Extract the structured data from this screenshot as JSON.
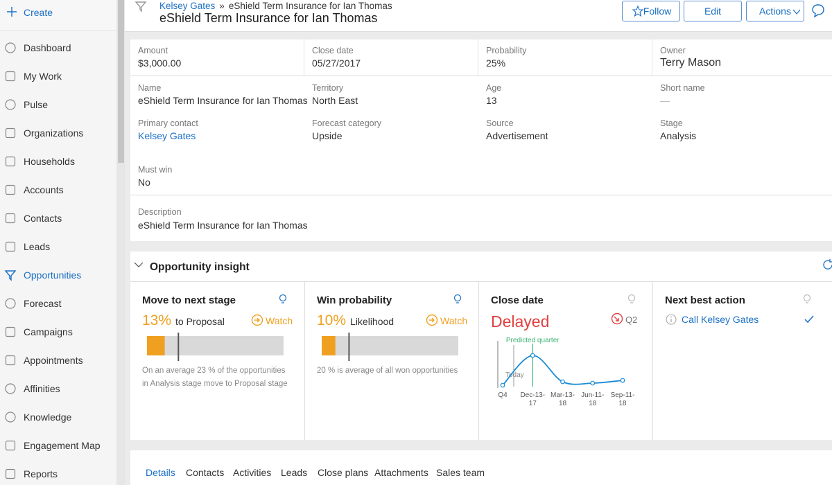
{
  "sidebar": {
    "create": "Create",
    "active": 8,
    "items": [
      "Dashboard",
      "My Work",
      "Pulse",
      "Organizations",
      "Households",
      "Accounts",
      "Contacts",
      "Leads",
      "Opportunities",
      "Forecast",
      "Campaigns",
      "Appointments",
      "Affinities",
      "Knowledge",
      "Engagement Map",
      "Reports"
    ]
  },
  "header": {
    "breadcrumb": [
      "Kelsey Gates",
      "eShield Term Insurance for Ian Thomas"
    ],
    "separator": "»",
    "title": "eShield Term Insurance for Ian Thomas",
    "buttons": [
      "Follow",
      "Edit",
      "Actions"
    ]
  },
  "fields": [
    [
      {
        "label": "Amount",
        "value": "$3,000.00"
      },
      {
        "label": "Close date",
        "value": "05/27/2017"
      },
      {
        "label": "Probability",
        "value": "25%"
      },
      {
        "label": "Owner",
        "value": "Terry Mason"
      }
    ],
    [
      {
        "label": "Name",
        "value": "eShield Term Insurance for Ian Thomas"
      },
      {
        "label": "Territory",
        "value": "North East"
      },
      {
        "label": "Age",
        "value": "13"
      },
      {
        "label": "Short name",
        "value": "—"
      }
    ],
    [
      {
        "label": "Primary contact",
        "value": "Kelsey Gates",
        "link": true
      },
      {
        "label": "Forecast category",
        "value": "Upside"
      },
      {
        "label": "Source",
        "value": "Advertisement"
      },
      {
        "label": "Stage",
        "value": "Analysis"
      }
    ],
    [
      {
        "label": "Must win",
        "value": "No"
      }
    ]
  ],
  "description": {
    "label": "Description",
    "value": "eShield Term Insurance for Ian Thomas"
  },
  "insight": {
    "title": "Opportunity insight",
    "cards": [
      {
        "title": "Move to next stage",
        "value": 13,
        "value_label": "13%",
        "target": "to Proposal",
        "status": "Watch",
        "average": 23,
        "caption": "On an average 23 % of the opportunities in Analysis  stage move to Proposal  stage"
      },
      {
        "title": "Win probability",
        "value": 10,
        "value_label": "10%",
        "target": "Likelihood",
        "status": "Watch",
        "average": 20,
        "caption": "20 % is  average of all won opportunities"
      },
      {
        "title": "Close date",
        "status": "Delayed",
        "quarter": "Q2"
      },
      {
        "title": "Next best action",
        "action": "Call Kelsey Gates"
      }
    ]
  },
  "chart_data": {
    "type": "line",
    "categories": [
      "Q4",
      "Dec-13-17",
      "Mar-13-18",
      "Jun-11-18",
      "Sep-11-18"
    ],
    "values": [
      2,
      45,
      7,
      5,
      9
    ],
    "ylim": [
      0,
      50
    ],
    "color": "#1a8ad4",
    "annotations": [
      "Predicted quarter",
      "Today"
    ]
  },
  "tabs": {
    "active": 0,
    "items": [
      "Details",
      "Contacts",
      "Activities",
      "Leads",
      "Close plans",
      "Attachments",
      "Sales team"
    ]
  }
}
